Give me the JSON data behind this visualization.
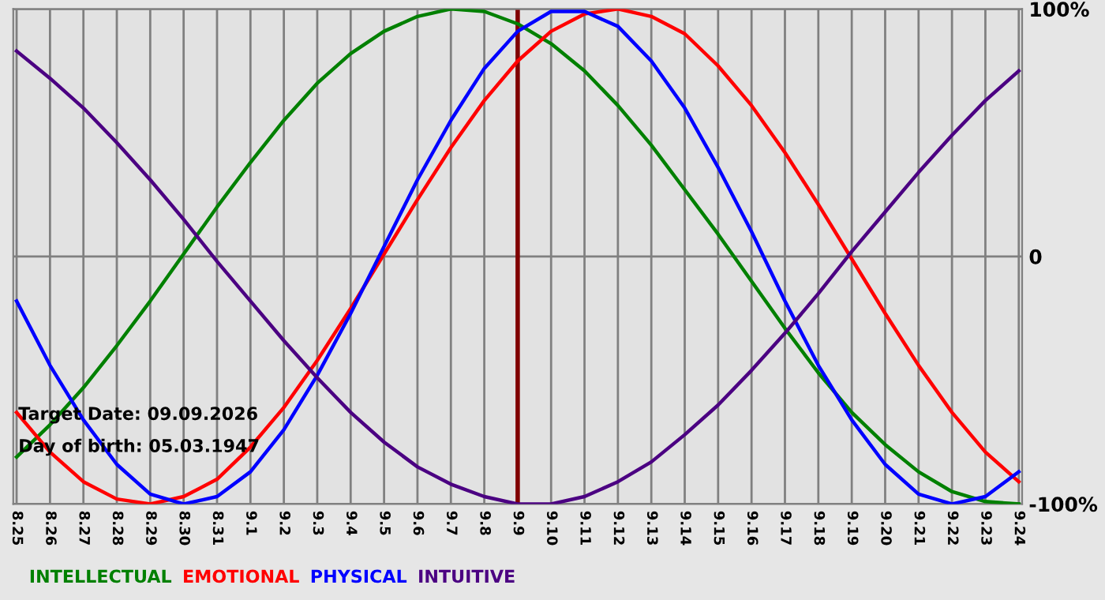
{
  "chart_data": {
    "type": "line",
    "categories": [
      "8.25",
      "8.26",
      "8.27",
      "8.28",
      "8.29",
      "8.30",
      "8.31",
      "9.1",
      "9.2",
      "9.3",
      "9.4",
      "9.5",
      "9.6",
      "9.7",
      "9.8",
      "9.9",
      "9.10",
      "9.11",
      "9.12",
      "9.13",
      "9.14",
      "9.15",
      "9.16",
      "9.17",
      "9.18",
      "9.19",
      "9.20",
      "9.21",
      "9.22",
      "9.23",
      "9.24"
    ],
    "series": [
      {
        "name": "INTELLECTUAL",
        "color": "#008000",
        "values": [
          -81,
          -68,
          -53,
          -36,
          -18,
          1,
          20,
          38,
          55,
          70,
          82,
          91,
          97,
          100,
          99,
          94,
          86,
          75,
          61,
          45,
          27,
          9,
          -10,
          -29,
          -47,
          -63,
          -76,
          -87,
          -95,
          -99,
          -100
        ]
      },
      {
        "name": "EMOTIONAL",
        "color": "#ff0000",
        "values": [
          -63,
          -79,
          -91,
          -98,
          -100,
          -97,
          -90,
          -77,
          -61,
          -42,
          -21,
          1,
          23,
          44,
          63,
          79,
          91,
          98,
          100,
          97,
          90,
          77,
          61,
          42,
          21,
          -1,
          -23,
          -44,
          -63,
          -79,
          -91
        ]
      },
      {
        "name": "PHYSICAL",
        "color": "#0000ff",
        "values": [
          -18,
          -44,
          -66,
          -84,
          -96,
          -100,
          -97,
          -87,
          -70,
          -48,
          -23,
          4,
          31,
          55,
          76,
          91,
          99,
          99,
          93,
          79,
          60,
          36,
          10,
          -18,
          -44,
          -66,
          -84,
          -96,
          -100,
          -97,
          -87
        ]
      },
      {
        "name": "INTUITIVE",
        "color": "#4b0082",
        "values": [
          83,
          72,
          60,
          46,
          31,
          15,
          -2,
          -18,
          -34,
          -49,
          -63,
          -75,
          -85,
          -92,
          -97,
          -100,
          -100,
          -97,
          -91,
          -83,
          -72,
          -60,
          -46,
          -31,
          -15,
          2,
          18,
          34,
          49,
          63,
          75
        ]
      }
    ],
    "ylim": [
      -100,
      100
    ],
    "yticks": [
      {
        "value": -100,
        "label": "-100%"
      },
      0,
      {
        "value": 100,
        "label": "100%"
      }
    ],
    "ref_lines": [
      {
        "axis": "x",
        "value": "9.9",
        "color": "#800000"
      }
    ],
    "annotations": [
      "Target Date: 09.09.2026",
      "Day of birth: 05.03.1947"
    ],
    "grid": true,
    "legend": "bottom left",
    "marker": "none",
    "line_style": "solid"
  }
}
